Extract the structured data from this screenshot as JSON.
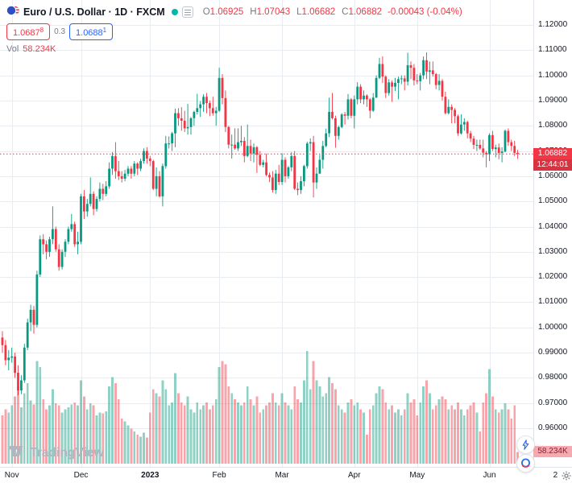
{
  "meta": {
    "app": "TradingView chart",
    "colors": {
      "up": "#089981",
      "down": "#f23645",
      "accent_blue": "#2962ff",
      "grid": "#e9ecf1",
      "axis_text": "#131722",
      "muted": "#787b86",
      "axis_border": "#e0e3eb",
      "logo_gray": "#b2b5be",
      "vol_up": "rgba(8,153,129,0.45)",
      "vol_down": "rgba(242,54,69,0.45)"
    }
  },
  "legend": {
    "title": "Euro / U.S. Dollar · 1D · FXCM",
    "o_label": "O",
    "o": "1.06925",
    "h_label": "H",
    "h": "1.07043",
    "l_label": "L",
    "l": "1.06682",
    "c_label": "C",
    "c": "1.06882",
    "change": "-0.00043 (-0.04%)",
    "sell_price": "1.0687",
    "sell_sup": "8",
    "spread": "0.3",
    "buy_price": "1.0688",
    "buy_sup": "1",
    "vol_label": "Vol",
    "vol_value": "58.234K"
  },
  "price_tag": {
    "price": "1.06882",
    "countdown": "12:44:01"
  },
  "volume_tag": {
    "value": "58.234K"
  },
  "price_axis": {
    "labels": [
      "1.12000",
      "1.11000",
      "1.10000",
      "1.09000",
      "1.08000",
      "1.07000",
      "1.06000",
      "1.05000",
      "1.04000",
      "1.03000",
      "1.02000",
      "1.01000",
      "1.00000",
      "0.99000",
      "0.98000",
      "0.97000",
      "0.96000"
    ]
  },
  "time_axis": {
    "ticks": [
      {
        "label": "Nov",
        "index": 3
      },
      {
        "label": "Dec",
        "index": 25
      },
      {
        "label": "2023",
        "index": 47,
        "year": true
      },
      {
        "label": "Feb",
        "index": 69
      },
      {
        "label": "Mar",
        "index": 89
      },
      {
        "label": "Apr",
        "index": 112
      },
      {
        "label": "May",
        "index": 132
      },
      {
        "label": "Jun",
        "index": 155
      },
      {
        "label": "2",
        "index": 176
      }
    ]
  },
  "logo": {
    "text": "TradingView"
  },
  "chart_data": {
    "type": "candlestick",
    "title": "Euro / U.S. Dollar",
    "interval": "1D",
    "exchange": "FXCM",
    "x_range": [
      "Oct 2022",
      "Jun 2023"
    ],
    "y_axis": {
      "min": 0.96,
      "max": 1.12,
      "step": 0.01
    },
    "grid": true,
    "last": {
      "open": 1.06925,
      "high": 1.07043,
      "low": 1.06682,
      "close": 1.06882,
      "change": -0.00043,
      "change_pct": -0.04,
      "volume_k": 58.234
    },
    "volume_axis_max_k": 580,
    "candles_format": [
      "open",
      "high",
      "low",
      "close",
      "volume_k"
    ],
    "candles": [
      [
        0.996,
        0.9985,
        0.99,
        0.993,
        240
      ],
      [
        0.993,
        0.995,
        0.985,
        0.987,
        270
      ],
      [
        0.987,
        0.991,
        0.983,
        0.988,
        255
      ],
      [
        0.988,
        0.992,
        0.986,
        0.9885,
        290
      ],
      [
        0.9885,
        0.99,
        0.98,
        0.982,
        335
      ],
      [
        0.982,
        0.985,
        0.973,
        0.975,
        385
      ],
      [
        0.975,
        0.981,
        0.9735,
        0.979,
        280
      ],
      [
        0.979,
        0.9935,
        0.978,
        0.992,
        350
      ],
      [
        0.992,
        1.0035,
        0.991,
        1.002,
        400
      ],
      [
        1.002,
        1.009,
        0.9985,
        1.007,
        315
      ],
      [
        1.007,
        1.0085,
        0.9975,
        1.001,
        295
      ],
      [
        1.001,
        1.0225,
        1.0,
        1.021,
        510
      ],
      [
        1.021,
        1.0365,
        1.02,
        1.035,
        480
      ],
      [
        1.035,
        1.037,
        1.029,
        1.033,
        320
      ],
      [
        1.033,
        1.0345,
        1.027,
        1.03,
        270
      ],
      [
        1.03,
        1.036,
        1.028,
        1.035,
        290
      ],
      [
        1.035,
        1.048,
        1.033,
        1.039,
        370
      ],
      [
        1.039,
        1.04,
        1.03,
        1.031,
        300
      ],
      [
        1.031,
        1.033,
        1.0225,
        1.024,
        290
      ],
      [
        1.024,
        1.031,
        1.023,
        1.03,
        255
      ],
      [
        1.03,
        1.035,
        1.028,
        1.034,
        270
      ],
      [
        1.034,
        1.04,
        1.033,
        1.039,
        280
      ],
      [
        1.039,
        1.045,
        1.038,
        1.041,
        295
      ],
      [
        1.041,
        1.042,
        1.032,
        1.033,
        305
      ],
      [
        1.033,
        1.038,
        1.029,
        1.034,
        290
      ],
      [
        1.034,
        1.053,
        1.033,
        1.052,
        415
      ],
      [
        1.052,
        1.0545,
        1.043,
        1.046,
        335
      ],
      [
        1.046,
        1.051,
        1.044,
        1.049,
        270
      ],
      [
        1.049,
        1.0595,
        1.048,
        1.053,
        300
      ],
      [
        1.053,
        1.054,
        1.0445,
        1.047,
        290
      ],
      [
        1.047,
        1.052,
        1.046,
        1.051,
        240
      ],
      [
        1.051,
        1.0575,
        1.05,
        1.055,
        255
      ],
      [
        1.055,
        1.057,
        1.0505,
        1.053,
        250
      ],
      [
        1.053,
        1.058,
        1.052,
        1.056,
        260
      ],
      [
        1.056,
        1.0655,
        1.055,
        1.063,
        385
      ],
      [
        1.063,
        1.0695,
        1.0605,
        1.068,
        430
      ],
      [
        1.068,
        1.0735,
        1.059,
        1.062,
        400
      ],
      [
        1.062,
        1.066,
        1.0585,
        1.06,
        320
      ],
      [
        1.06,
        1.062,
        1.0575,
        1.059,
        225
      ],
      [
        1.059,
        1.0625,
        1.058,
        1.061,
        210
      ],
      [
        1.061,
        1.064,
        1.06,
        1.063,
        190
      ],
      [
        1.063,
        1.064,
        1.059,
        1.061,
        175
      ],
      [
        1.061,
        1.066,
        1.06,
        1.065,
        160
      ],
      [
        1.065,
        1.0655,
        1.0605,
        1.063,
        145
      ],
      [
        1.063,
        1.067,
        1.062,
        1.066,
        135
      ],
      [
        1.066,
        1.071,
        1.065,
        1.07,
        155
      ],
      [
        1.07,
        1.0715,
        1.065,
        1.067,
        130
      ],
      [
        1.067,
        1.068,
        1.064,
        1.066,
        255
      ],
      [
        1.066,
        1.0665,
        1.0545,
        1.055,
        370
      ],
      [
        1.055,
        1.0635,
        1.052,
        1.06,
        350
      ],
      [
        1.06,
        1.062,
        1.0515,
        1.052,
        335
      ],
      [
        1.052,
        1.065,
        1.048,
        1.064,
        415
      ],
      [
        1.064,
        1.076,
        1.063,
        1.073,
        370
      ],
      [
        1.073,
        1.0758,
        1.071,
        1.073,
        290
      ],
      [
        1.073,
        1.0776,
        1.07,
        1.077,
        305
      ],
      [
        1.077,
        1.0868,
        1.0715,
        1.085,
        450
      ],
      [
        1.085,
        1.087,
        1.08,
        1.083,
        350
      ],
      [
        1.083,
        1.0874,
        1.078,
        1.082,
        305
      ],
      [
        1.082,
        1.086,
        1.0775,
        1.079,
        290
      ],
      [
        1.079,
        1.0887,
        1.0765,
        1.0795,
        335
      ],
      [
        1.0795,
        1.0835,
        1.0765,
        1.083,
        270
      ],
      [
        1.083,
        1.086,
        1.08,
        1.0855,
        255
      ],
      [
        1.0855,
        1.0927,
        1.0845,
        1.087,
        305
      ],
      [
        1.087,
        1.0898,
        1.0835,
        1.0885,
        270
      ],
      [
        1.0885,
        1.0925,
        1.0855,
        1.0915,
        290
      ],
      [
        1.0915,
        1.093,
        1.085,
        1.089,
        305
      ],
      [
        1.089,
        1.09,
        1.0838,
        1.087,
        270
      ],
      [
        1.087,
        1.0915,
        1.084,
        1.085,
        290
      ],
      [
        1.085,
        1.0875,
        1.08,
        1.086,
        320
      ],
      [
        1.086,
        1.103,
        1.0855,
        1.099,
        480
      ],
      [
        1.099,
        1.1005,
        1.0885,
        1.091,
        510
      ],
      [
        1.091,
        1.094,
        1.0775,
        1.0795,
        495
      ],
      [
        1.0795,
        1.08,
        1.071,
        1.0725,
        385
      ],
      [
        1.0725,
        1.0765,
        1.067,
        1.0725,
        350
      ],
      [
        1.0725,
        1.079,
        1.0705,
        1.071,
        320
      ],
      [
        1.071,
        1.079,
        1.07,
        1.0735,
        305
      ],
      [
        1.0735,
        1.08,
        1.072,
        1.074,
        290
      ],
      [
        1.074,
        1.0755,
        1.0655,
        1.068,
        305
      ],
      [
        1.068,
        1.0805,
        1.0675,
        1.072,
        385
      ],
      [
        1.072,
        1.0745,
        1.066,
        1.069,
        320
      ],
      [
        1.069,
        1.073,
        1.0655,
        1.0715,
        290
      ],
      [
        1.0715,
        1.072,
        1.0613,
        1.0685,
        335
      ],
      [
        1.0685,
        1.07,
        1.064,
        1.0645,
        255
      ],
      [
        1.0645,
        1.0665,
        1.0635,
        1.0655,
        270
      ],
      [
        1.0655,
        1.069,
        1.06,
        1.0605,
        290
      ],
      [
        1.0605,
        1.0615,
        1.0577,
        1.0595,
        305
      ],
      [
        1.0595,
        1.062,
        1.0535,
        1.0545,
        350
      ],
      [
        1.0545,
        1.0625,
        1.053,
        1.061,
        305
      ],
      [
        1.061,
        1.0645,
        1.0565,
        1.0577,
        290
      ],
      [
        1.0577,
        1.0691,
        1.0565,
        1.0665,
        350
      ],
      [
        1.0665,
        1.0675,
        1.0575,
        1.06,
        305
      ],
      [
        1.06,
        1.064,
        1.059,
        1.0635,
        290
      ],
      [
        1.0635,
        1.0695,
        1.062,
        1.068,
        270
      ],
      [
        1.068,
        1.07,
        1.0545,
        1.055,
        385
      ],
      [
        1.055,
        1.0575,
        1.0525,
        1.0545,
        320
      ],
      [
        1.0545,
        1.06,
        1.053,
        1.058,
        305
      ],
      [
        1.058,
        1.0645,
        1.056,
        1.064,
        415
      ],
      [
        1.064,
        1.0737,
        1.063,
        1.073,
        560
      ],
      [
        1.073,
        1.075,
        1.07,
        1.0735,
        370
      ],
      [
        1.0735,
        1.076,
        1.0516,
        1.0575,
        510
      ],
      [
        1.0575,
        1.0635,
        1.055,
        1.061,
        415
      ],
      [
        1.061,
        1.0685,
        1.061,
        1.0665,
        385
      ],
      [
        1.0665,
        1.074,
        1.063,
        1.072,
        335
      ],
      [
        1.072,
        1.0789,
        1.0715,
        1.077,
        350
      ],
      [
        1.077,
        1.0912,
        1.0755,
        1.0855,
        430
      ],
      [
        1.0855,
        1.093,
        1.0825,
        1.083,
        400
      ],
      [
        1.083,
        1.084,
        1.0713,
        1.076,
        370
      ],
      [
        1.076,
        1.08,
        1.0745,
        1.0795,
        290
      ],
      [
        1.0795,
        1.085,
        1.079,
        1.0845,
        270
      ],
      [
        1.0845,
        1.0855,
        1.0805,
        1.084,
        255
      ],
      [
        1.084,
        1.0926,
        1.0825,
        1.0905,
        305
      ],
      [
        1.0905,
        1.091,
        1.083,
        1.084,
        320
      ],
      [
        1.084,
        1.092,
        1.079,
        1.0905,
        290
      ],
      [
        1.0905,
        1.0973,
        1.0885,
        1.0955,
        305
      ],
      [
        1.0955,
        1.0965,
        1.089,
        1.0905,
        270
      ],
      [
        1.0905,
        1.094,
        1.0885,
        1.092,
        255
      ],
      [
        1.092,
        1.0925,
        1.0875,
        1.0905,
        145
      ],
      [
        1.0905,
        1.091,
        1.083,
        1.086,
        270
      ],
      [
        1.086,
        1.093,
        1.0855,
        1.0912,
        290
      ],
      [
        1.0912,
        1.1,
        1.091,
        1.099,
        350
      ],
      [
        1.099,
        1.107,
        1.0985,
        1.1045,
        385
      ],
      [
        1.1045,
        1.1075,
        1.097,
        1.0995,
        370
      ],
      [
        1.0995,
        1.1,
        1.091,
        1.093,
        305
      ],
      [
        1.093,
        1.0985,
        1.092,
        1.0972,
        270
      ],
      [
        1.0972,
        1.098,
        1.0895,
        1.0955,
        290
      ],
      [
        1.0955,
        1.099,
        1.0938,
        1.097,
        255
      ],
      [
        1.097,
        1.0995,
        1.0905,
        1.0985,
        270
      ],
      [
        1.0985,
        1.1,
        1.0965,
        1.0988,
        240
      ],
      [
        1.0988,
        1.1,
        1.094,
        1.0975,
        270
      ],
      [
        1.0975,
        1.109,
        1.096,
        1.104,
        350
      ],
      [
        1.104,
        1.1055,
        1.0985,
        1.103,
        305
      ],
      [
        1.103,
        1.1045,
        1.096,
        1.098,
        320
      ],
      [
        1.098,
        1.1005,
        1.0965,
        1.0977,
        240
      ],
      [
        1.0977,
        1.101,
        1.094,
        1.1,
        305
      ],
      [
        1.1,
        1.1075,
        1.0985,
        1.106,
        385
      ],
      [
        1.106,
        1.1091,
        1.0985,
        1.1015,
        415
      ],
      [
        1.1015,
        1.1055,
        1.0965,
        1.102,
        350
      ],
      [
        1.102,
        1.1055,
        1.0995,
        1.1005,
        270
      ],
      [
        1.1005,
        1.101,
        1.0945,
        1.0962,
        290
      ],
      [
        1.0962,
        1.1005,
        1.094,
        1.0978,
        320
      ],
      [
        1.0978,
        1.0985,
        1.09,
        1.0915,
        335
      ],
      [
        1.0915,
        1.0935,
        1.0845,
        1.085,
        320
      ],
      [
        1.085,
        1.0905,
        1.0845,
        1.0875,
        270
      ],
      [
        1.0875,
        1.0885,
        1.081,
        1.0863,
        290
      ],
      [
        1.0863,
        1.087,
        1.081,
        1.0838,
        270
      ],
      [
        1.0838,
        1.0845,
        1.076,
        1.077,
        305
      ],
      [
        1.077,
        1.0845,
        1.0765,
        1.0805,
        270
      ],
      [
        1.0805,
        1.083,
        1.078,
        1.0815,
        240
      ],
      [
        1.0815,
        1.082,
        1.075,
        1.077,
        270
      ],
      [
        1.077,
        1.078,
        1.0735,
        1.0749,
        290
      ],
      [
        1.0749,
        1.076,
        1.0708,
        1.0724,
        305
      ],
      [
        1.0724,
        1.0745,
        1.07,
        1.0724,
        255
      ],
      [
        1.0724,
        1.0745,
        1.0705,
        1.071,
        160
      ],
      [
        1.071,
        1.0745,
        1.0675,
        1.0693,
        305
      ],
      [
        1.0693,
        1.07,
        1.0635,
        1.0687,
        350
      ],
      [
        1.0687,
        1.077,
        1.066,
        1.0763,
        470
      ],
      [
        1.0763,
        1.078,
        1.07,
        1.0708,
        335
      ],
      [
        1.0708,
        1.0725,
        1.0675,
        1.0714,
        270
      ],
      [
        1.0714,
        1.073,
        1.0667,
        1.0692,
        255
      ],
      [
        1.0692,
        1.0715,
        1.0655,
        1.0698,
        270
      ],
      [
        1.0698,
        1.0785,
        1.0695,
        1.078,
        300
      ],
      [
        1.078,
        1.079,
        1.072,
        1.0735,
        270
      ],
      [
        1.0735,
        1.0745,
        1.07,
        1.072,
        225
      ],
      [
        1.072,
        1.074,
        1.068,
        1.06925,
        290
      ],
      [
        1.06925,
        1.07043,
        1.06682,
        1.06882,
        58.234
      ]
    ]
  }
}
